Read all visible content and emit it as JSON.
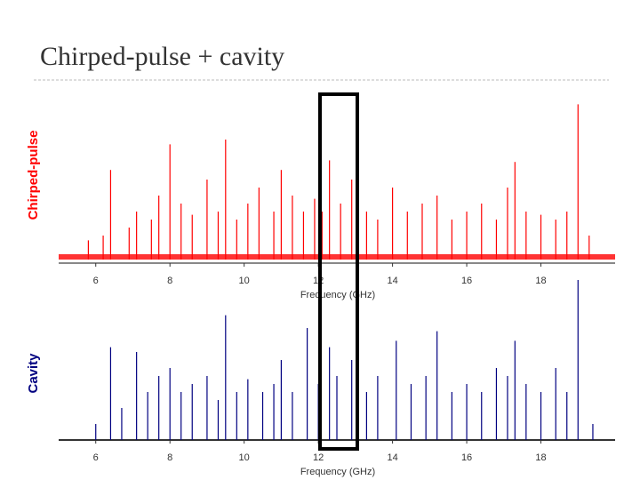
{
  "slide_title": "Chirped-pulse + cavity",
  "chart_data": [
    {
      "type": "stick",
      "ylabel": "Chirped-pulse",
      "xlabel": "Frequency (GHz)",
      "color": "#ff0000",
      "xlim": [
        5,
        20
      ],
      "xticks": [
        6,
        8,
        10,
        12,
        14,
        16,
        18
      ],
      "ylim": [
        0,
        1
      ],
      "x": [
        5.8,
        6.2,
        6.4,
        6.9,
        7.1,
        7.5,
        7.7,
        8.0,
        8.3,
        8.6,
        9.0,
        9.3,
        9.5,
        9.8,
        10.1,
        10.4,
        10.8,
        11.0,
        11.3,
        11.6,
        11.9,
        12.1,
        12.3,
        12.6,
        12.9,
        13.3,
        13.6,
        14.0,
        14.4,
        14.8,
        15.2,
        15.6,
        16.0,
        16.4,
        16.8,
        17.1,
        17.3,
        17.6,
        18.0,
        18.4,
        18.7,
        19.0,
        19.3
      ],
      "values": [
        0.12,
        0.15,
        0.56,
        0.2,
        0.3,
        0.25,
        0.4,
        0.72,
        0.35,
        0.28,
        0.5,
        0.3,
        0.75,
        0.25,
        0.35,
        0.45,
        0.3,
        0.56,
        0.4,
        0.3,
        0.38,
        0.3,
        0.62,
        0.35,
        0.5,
        0.3,
        0.25,
        0.45,
        0.3,
        0.35,
        0.4,
        0.25,
        0.3,
        0.35,
        0.25,
        0.45,
        0.61,
        0.3,
        0.28,
        0.25,
        0.3,
        0.97,
        0.15
      ]
    },
    {
      "type": "stick",
      "ylabel": "Cavity",
      "xlabel": "Frequency (GHz)",
      "color": "#000080",
      "xlim": [
        5,
        20
      ],
      "xticks": [
        6,
        8,
        10,
        12,
        14,
        16,
        18
      ],
      "ylim": [
        0,
        1
      ],
      "x": [
        6.0,
        6.4,
        6.7,
        7.1,
        7.4,
        7.7,
        8.0,
        8.3,
        8.6,
        9.0,
        9.3,
        9.5,
        9.8,
        10.1,
        10.5,
        10.8,
        11.0,
        11.3,
        11.7,
        12.0,
        12.3,
        12.5,
        12.9,
        13.3,
        13.6,
        14.1,
        14.5,
        14.9,
        15.2,
        15.6,
        16.0,
        16.4,
        16.8,
        17.1,
        17.3,
        17.6,
        18.0,
        18.4,
        18.7,
        19.0,
        19.4
      ],
      "values": [
        0.1,
        0.58,
        0.2,
        0.55,
        0.3,
        0.4,
        0.45,
        0.3,
        0.35,
        0.4,
        0.25,
        0.78,
        0.3,
        0.38,
        0.3,
        0.35,
        0.5,
        0.3,
        0.7,
        0.35,
        0.58,
        0.4,
        0.5,
        0.3,
        0.4,
        0.62,
        0.35,
        0.4,
        0.68,
        0.3,
        0.35,
        0.3,
        0.45,
        0.4,
        0.62,
        0.35,
        0.3,
        0.45,
        0.3,
        1.0,
        0.1
      ]
    }
  ]
}
